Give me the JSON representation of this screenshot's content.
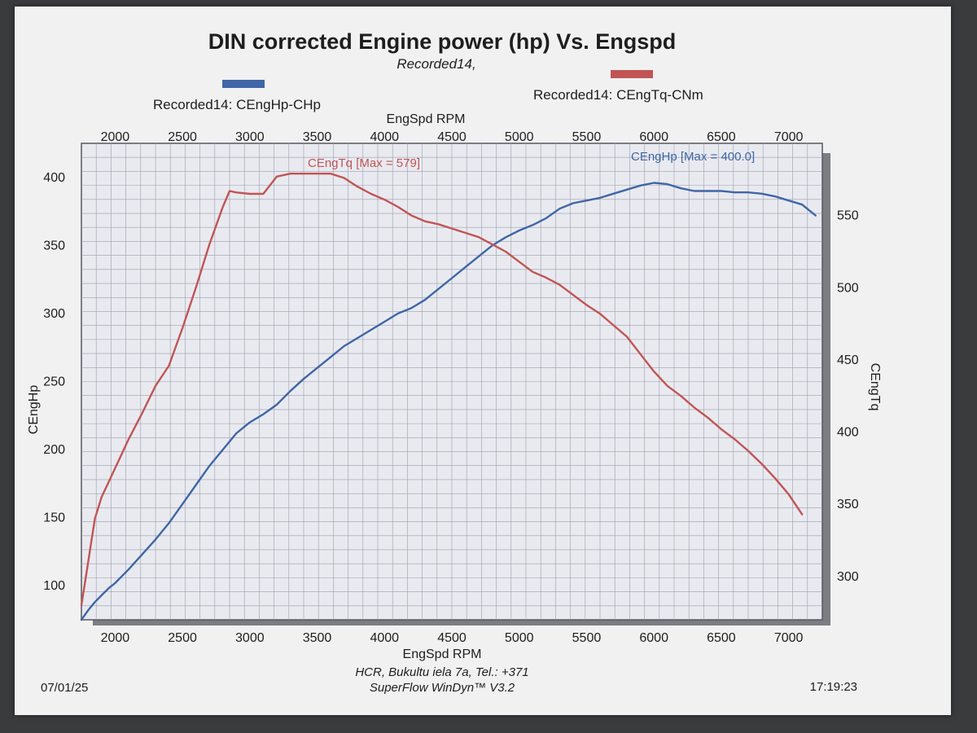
{
  "chart_data": {
    "type": "line",
    "title": "DIN corrected Engine power (hp) Vs. Engspd",
    "subtitle": "Recorded14,",
    "xlabel": "EngSpd RPM",
    "ylabel_left": "CEngHp",
    "ylabel_right": "CEngTq",
    "xlim": [
      1750,
      7250
    ],
    "ylim_left": [
      75,
      425
    ],
    "ylim_right": [
      270,
      600
    ],
    "x_ticks": [
      "2000",
      "2500",
      "3000",
      "3500",
      "4000",
      "4500",
      "5000",
      "5500",
      "6000",
      "6500",
      "7000"
    ],
    "y_left_ticks": [
      "100",
      "150",
      "200",
      "250",
      "300",
      "350",
      "400"
    ],
    "y_right_ticks": [
      "300",
      "350",
      "400",
      "450",
      "500",
      "550"
    ],
    "grid": true,
    "legend_location": "top",
    "series": [
      {
        "name": "Recorded14: CEngHp-CHp",
        "axis": "left",
        "color": "#3f66a6",
        "annotation": "CEngHp [Max = 400.0]",
        "x": [
          1750,
          1800,
          1850,
          1900,
          1950,
          2000,
          2100,
          2200,
          2300,
          2400,
          2500,
          2600,
          2700,
          2800,
          2900,
          3000,
          3100,
          3200,
          3300,
          3400,
          3500,
          3600,
          3700,
          3800,
          3900,
          4000,
          4100,
          4200,
          4300,
          4400,
          4500,
          4600,
          4700,
          4800,
          4900,
          5000,
          5100,
          5200,
          5300,
          5400,
          5500,
          5600,
          5700,
          5800,
          5900,
          6000,
          6100,
          6200,
          6300,
          6400,
          6500,
          6600,
          6700,
          6800,
          6900,
          7000,
          7100,
          7200
        ],
        "y": [
          75,
          82,
          88,
          93,
          98,
          102,
          112,
          123,
          134,
          146,
          160,
          174,
          188,
          200,
          212,
          220,
          226,
          233,
          243,
          252,
          260,
          268,
          276,
          282,
          288,
          294,
          300,
          304,
          310,
          318,
          326,
          334,
          342,
          350,
          356,
          361,
          365,
          370,
          377,
          381,
          383,
          385,
          388,
          391,
          394,
          396,
          395,
          392,
          390,
          390,
          390,
          389,
          389,
          388,
          386,
          383,
          380,
          372
        ]
      },
      {
        "name": "Recorded14: CEngTq-CNm",
        "axis": "right",
        "color": "#c15555",
        "annotation": "CEngTq [Max = 579]",
        "x": [
          1750,
          1800,
          1850,
          1900,
          1950,
          2000,
          2100,
          2200,
          2300,
          2400,
          2500,
          2600,
          2700,
          2800,
          2850,
          2900,
          3000,
          3100,
          3200,
          3300,
          3400,
          3500,
          3600,
          3700,
          3800,
          3900,
          4000,
          4100,
          4200,
          4300,
          4400,
          4500,
          4600,
          4700,
          4800,
          4900,
          5000,
          5100,
          5200,
          5300,
          5400,
          5500,
          5600,
          5700,
          5800,
          5900,
          6000,
          6100,
          6200,
          6300,
          6400,
          6500,
          6600,
          6700,
          6800,
          6900,
          7000,
          7100
        ],
        "y": [
          280,
          310,
          340,
          355,
          365,
          375,
          395,
          413,
          432,
          446,
          472,
          500,
          530,
          556,
          567,
          566,
          565,
          565,
          577,
          579,
          579,
          579,
          579,
          576,
          570,
          565,
          561,
          556,
          550,
          546,
          544,
          541,
          538,
          535,
          530,
          525,
          518,
          511,
          507,
          502,
          495,
          488,
          482,
          474,
          466,
          454,
          442,
          432,
          425,
          417,
          410,
          402,
          395,
          387,
          378,
          368,
          357,
          343
        ]
      }
    ]
  },
  "footer": {
    "date": "07/01/25",
    "address": "HCR, Bukultu iela 7a, Tel.: +371",
    "software": "SuperFlow WinDyn™ V3.2",
    "time": "17:19:23"
  }
}
